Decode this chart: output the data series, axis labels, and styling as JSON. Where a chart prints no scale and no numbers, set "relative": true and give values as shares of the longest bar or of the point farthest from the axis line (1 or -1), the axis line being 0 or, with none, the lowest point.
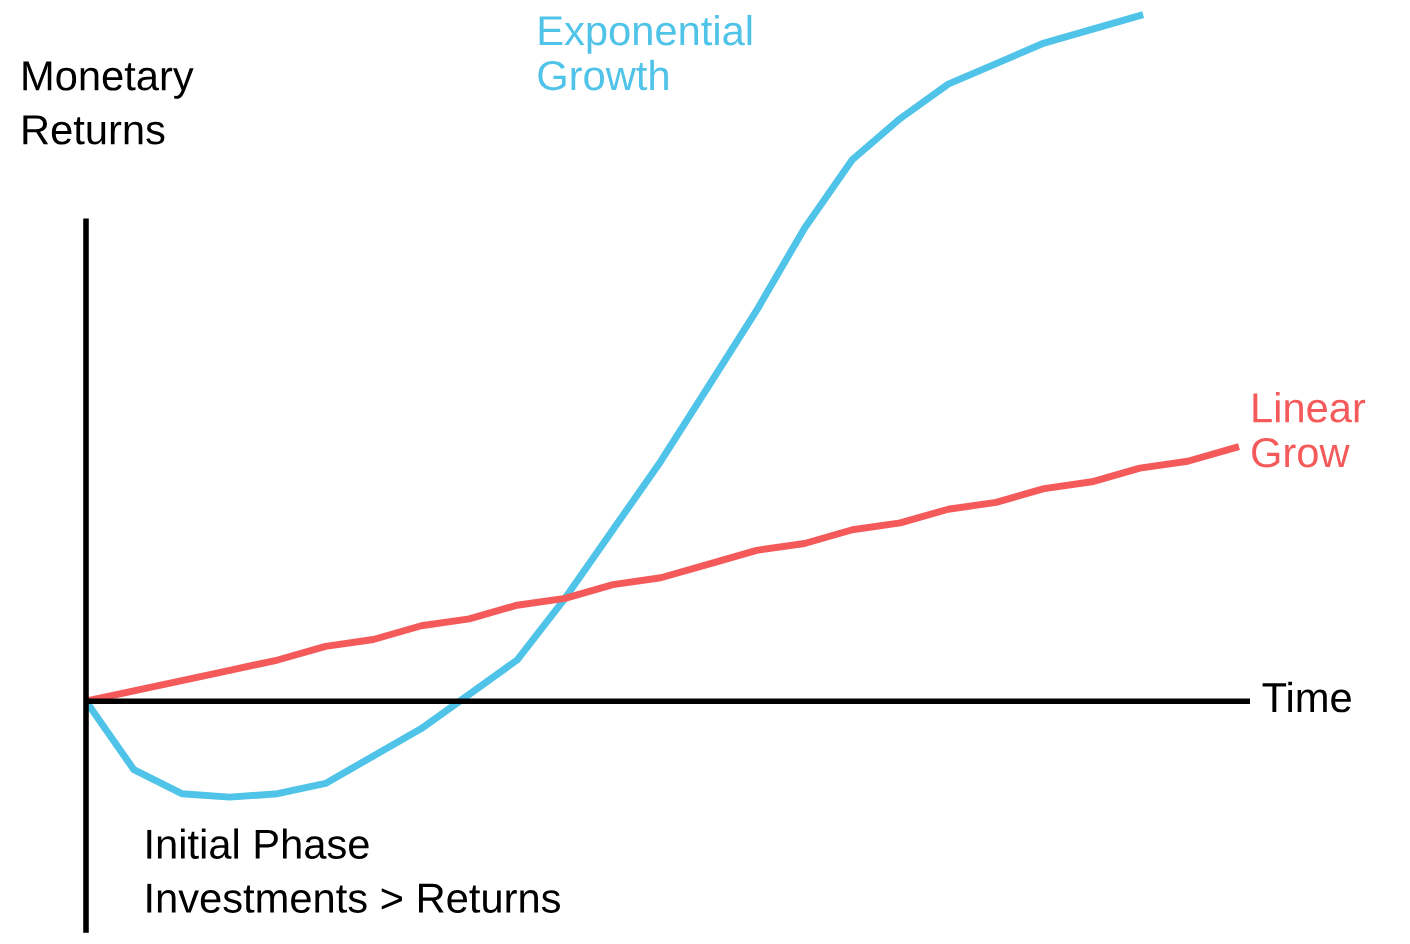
{
  "chart_data": {
    "type": "line",
    "relative": true,
    "ylabel": "Monetary\nReturns",
    "xlabel": "Time",
    "categories": [
      null,
      null,
      null,
      null,
      null,
      null,
      null,
      null,
      null,
      null,
      null,
      null,
      null,
      null,
      null,
      null,
      null,
      null,
      null,
      null,
      null,
      null,
      null,
      null,
      null
    ],
    "series": [
      {
        "name": "Exponential\nGrowth",
        "color": "#4fc3e8",
        "values": [
          0,
          -0.1,
          -0.135,
          -0.14,
          -0.135,
          -0.12,
          -0.08,
          -0.04,
          0.01,
          0.06,
          0.15,
          0.25,
          0.35,
          0.46,
          0.57,
          0.69,
          0.79,
          0.85,
          0.9,
          0.93,
          0.96,
          0.98,
          1.0,
          null,
          null
        ]
      },
      {
        "name": "Linear\nGrow",
        "color": "#f55a5a",
        "values": [
          0,
          0.015,
          0.03,
          0.045,
          0.06,
          0.08,
          0.09,
          0.11,
          0.12,
          0.14,
          0.15,
          0.17,
          0.18,
          0.2,
          0.22,
          0.23,
          0.25,
          0.26,
          0.28,
          0.29,
          0.31,
          0.32,
          0.34,
          0.35,
          0.37
        ]
      }
    ],
    "annotations": [
      "Initial Phase\nInvestments > Returns"
    ],
    "legend": false,
    "marker": "none",
    "line_style": "solid"
  }
}
